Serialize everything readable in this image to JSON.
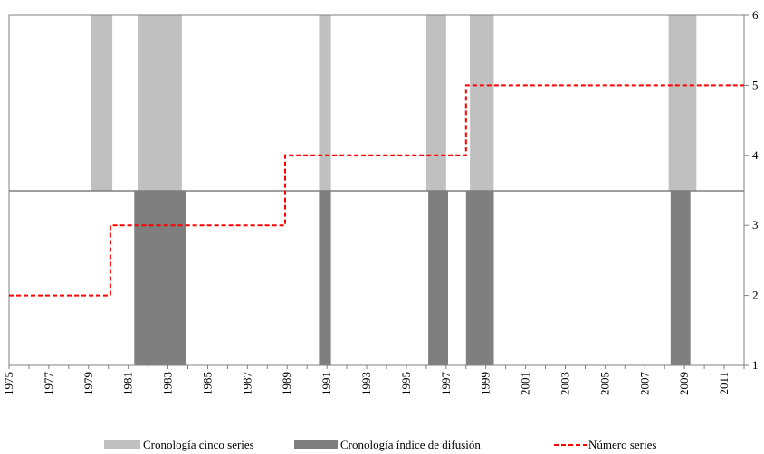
{
  "chart_data": {
    "type": "bar",
    "x_range": [
      1975,
      2012
    ],
    "x_tick_labels": [
      "1975",
      "1977",
      "1979",
      "1981",
      "1983",
      "1985",
      "1987",
      "1989",
      "1991",
      "1993",
      "1995",
      "1997",
      "1999",
      "2001",
      "2003",
      "2005",
      "2007",
      "2009",
      "2011"
    ],
    "y_right_range": [
      1,
      6
    ],
    "y_right_tick_labels": [
      "1",
      "2",
      "3",
      "4",
      "5",
      "6"
    ],
    "series": [
      {
        "name": "Cronología cinco series",
        "kind": "shaded-periods",
        "band": "upper",
        "color": "#c0c0c0",
        "periods": [
          [
            1979.1,
            1980.2
          ],
          [
            1981.5,
            1983.7
          ],
          [
            1990.6,
            1991.2
          ],
          [
            1996.0,
            1997.0
          ],
          [
            1998.2,
            1999.4
          ],
          [
            2008.2,
            2009.6
          ]
        ]
      },
      {
        "name": "Cronología índice de difusión",
        "kind": "shaded-periods",
        "band": "lower",
        "color": "#7f7f7f",
        "periods": [
          [
            1981.3,
            1983.9
          ],
          [
            1990.6,
            1991.2
          ],
          [
            1996.1,
            1997.1
          ],
          [
            1998.0,
            1999.4
          ],
          [
            2008.3,
            2009.3
          ]
        ]
      },
      {
        "name": "Número series",
        "kind": "step-line",
        "axis": "right",
        "color": "#ff0000",
        "points": [
          [
            1975.0,
            2
          ],
          [
            1980.1,
            2
          ],
          [
            1980.1,
            3
          ],
          [
            1988.9,
            3
          ],
          [
            1988.9,
            4
          ],
          [
            1998.0,
            4
          ],
          [
            1998.0,
            5
          ],
          [
            2012.0,
            5
          ]
        ]
      }
    ],
    "legend_position": "bottom",
    "grid": false
  }
}
